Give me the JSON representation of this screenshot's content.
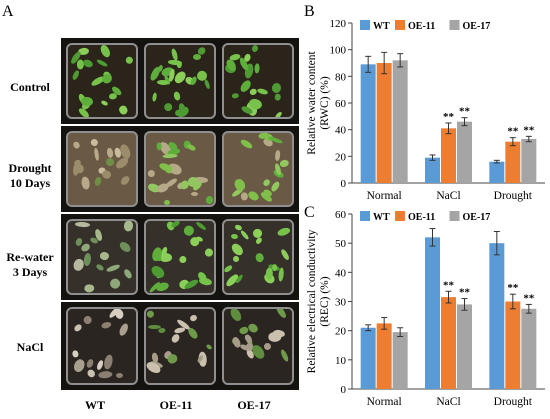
{
  "panel_a": {
    "letter": "A",
    "row_labels": [
      "Control",
      "Drought\n10 Days",
      "Re-water\n3 Days",
      "NaCl"
    ],
    "column_labels": [
      "WT",
      "OE-11",
      "OE-17"
    ]
  },
  "chart_data": [
    {
      "panel": "B",
      "type": "bar",
      "ylabel_lines": [
        "Relative water content",
        "(RWC) (%)"
      ],
      "categories": [
        "Normal",
        "NaCl",
        "Drought"
      ],
      "ylim": [
        0,
        120
      ],
      "yticks": [
        0,
        20,
        40,
        60,
        80,
        100,
        120
      ],
      "legend_position": "top",
      "grid": false,
      "series": [
        {
          "name": "WT",
          "color": "#5b9bd5",
          "values": [
            89,
            19,
            16
          ],
          "errors": [
            6,
            2,
            1
          ],
          "marks": [
            "",
            "",
            ""
          ]
        },
        {
          "name": "OE-11",
          "color": "#ed7d31",
          "values": [
            90,
            41,
            31
          ],
          "errors": [
            8,
            4,
            3
          ],
          "marks": [
            "",
            "**",
            "**"
          ]
        },
        {
          "name": "OE-17",
          "color": "#a5a5a5",
          "values": [
            92,
            46,
            33
          ],
          "errors": [
            5,
            3,
            2
          ],
          "marks": [
            "",
            "**",
            "**"
          ]
        }
      ]
    },
    {
      "panel": "C",
      "type": "bar",
      "ylabel_lines": [
        "Relative electrical conductivity",
        "(REC) (%)"
      ],
      "categories": [
        "Normal",
        "NaCl",
        "Drought"
      ],
      "ylim": [
        0,
        60
      ],
      "yticks": [
        0,
        10,
        20,
        30,
        40,
        50,
        60
      ],
      "legend_position": "top",
      "grid": false,
      "series": [
        {
          "name": "WT",
          "color": "#5b9bd5",
          "values": [
            21,
            52,
            50
          ],
          "errors": [
            1,
            3,
            4
          ],
          "marks": [
            "",
            "",
            ""
          ]
        },
        {
          "name": "OE-11",
          "color": "#ed7d31",
          "values": [
            22.5,
            31.5,
            30
          ],
          "errors": [
            2,
            2,
            2.5
          ],
          "marks": [
            "",
            "**",
            "**"
          ]
        },
        {
          "name": "OE-17",
          "color": "#a5a5a5",
          "values": [
            19.5,
            29,
            27.5
          ],
          "errors": [
            1.5,
            2,
            1.5
          ],
          "marks": [
            "",
            "**",
            "**"
          ]
        }
      ]
    }
  ]
}
